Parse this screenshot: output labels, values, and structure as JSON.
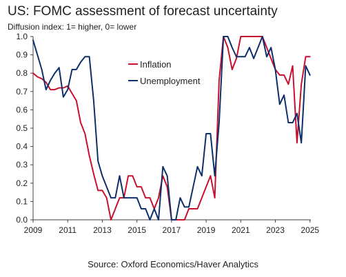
{
  "chart_data": {
    "type": "line",
    "title": "US: FOMC assessment of forecast uncertainty",
    "subtitle": "Diffusion index: 1= higher, 0= lower",
    "source": "Source: Oxford Economics/Haver Analytics",
    "xlabel": "",
    "ylabel": "",
    "xlim": [
      2009,
      2025.05
    ],
    "ylim": [
      0,
      1.0
    ],
    "x_ticks": [
      2009,
      2011,
      2013,
      2015,
      2017,
      2019,
      2021,
      2023,
      2025
    ],
    "y_ticks": [
      0.0,
      0.1,
      0.2,
      0.3,
      0.4,
      0.5,
      0.6,
      0.7,
      0.8,
      0.9,
      1.0
    ],
    "x_tick_labels": [
      "2009",
      "2011",
      "2013",
      "2015",
      "2017",
      "2019",
      "2021",
      "2023",
      "2025"
    ],
    "y_tick_labels": [
      "0.0",
      "0.1",
      "0.2",
      "0.3",
      "0.4",
      "0.5",
      "0.6",
      "0.7",
      "0.8",
      "0.9",
      "1.0"
    ],
    "grid": false,
    "legend_position": "upper-center",
    "colors": {
      "inflation": "#c8102e",
      "unemployment": "#0d2f6b",
      "axis": "#404040"
    },
    "series": [
      {
        "name": "Inflation",
        "color": "#c8102e",
        "x": [
          2009.0,
          2009.25,
          2009.5,
          2009.75,
          2010.0,
          2010.25,
          2010.5,
          2010.75,
          2011.0,
          2011.25,
          2011.5,
          2011.75,
          2012.0,
          2012.25,
          2012.5,
          2012.75,
          2013.0,
          2013.25,
          2013.5,
          2013.75,
          2014.0,
          2014.25,
          2014.5,
          2014.75,
          2015.0,
          2015.25,
          2015.5,
          2015.75,
          2016.0,
          2016.25,
          2016.5,
          2016.75,
          2017.0,
          2017.25,
          2017.5,
          2017.75,
          2018.0,
          2018.25,
          2018.5,
          2018.75,
          2019.0,
          2019.25,
          2019.5,
          2019.75,
          2020.0,
          2020.25,
          2020.5,
          2020.75,
          2021.0,
          2021.25,
          2021.5,
          2021.75,
          2022.0,
          2022.25,
          2022.5,
          2022.75,
          2023.0,
          2023.25,
          2023.5,
          2023.75,
          2024.0,
          2024.25,
          2024.5,
          2024.75,
          2025.0
        ],
        "y": [
          0.8,
          0.78,
          0.77,
          0.75,
          0.71,
          0.71,
          0.72,
          0.72,
          0.73,
          0.69,
          0.65,
          0.53,
          0.47,
          0.35,
          0.25,
          0.16,
          0.16,
          0.12,
          0.0,
          0.06,
          0.12,
          0.12,
          0.24,
          0.24,
          0.18,
          0.18,
          0.12,
          0.12,
          0.06,
          0.12,
          0.24,
          0.18,
          0.0,
          0.0,
          0.0,
          0.0,
          0.06,
          0.06,
          0.06,
          0.12,
          0.18,
          0.24,
          0.12,
          0.76,
          1.0,
          0.94,
          0.82,
          0.88,
          1.0,
          1.0,
          1.0,
          1.0,
          1.0,
          1.0,
          0.94,
          0.88,
          0.82,
          0.79,
          0.79,
          0.74,
          0.84,
          0.42,
          0.74,
          0.89,
          0.89
        ]
      },
      {
        "name": "Unemployment",
        "color": "#0d2f6b",
        "x": [
          2009.0,
          2009.25,
          2009.5,
          2009.75,
          2010.0,
          2010.25,
          2010.5,
          2010.75,
          2011.0,
          2011.25,
          2011.5,
          2011.75,
          2012.0,
          2012.25,
          2012.5,
          2012.75,
          2013.0,
          2013.25,
          2013.5,
          2013.75,
          2014.0,
          2014.25,
          2014.5,
          2014.75,
          2015.0,
          2015.25,
          2015.5,
          2015.75,
          2016.0,
          2016.25,
          2016.5,
          2016.75,
          2017.0,
          2017.25,
          2017.5,
          2017.75,
          2018.0,
          2018.25,
          2018.5,
          2018.75,
          2019.0,
          2019.25,
          2019.5,
          2019.75,
          2020.0,
          2020.25,
          2020.5,
          2020.75,
          2021.0,
          2021.25,
          2021.5,
          2021.75,
          2022.0,
          2022.25,
          2022.5,
          2022.75,
          2023.0,
          2023.25,
          2023.5,
          2023.75,
          2024.0,
          2024.25,
          2024.5,
          2024.75,
          2025.0
        ],
        "y": [
          0.98,
          0.9,
          0.82,
          0.71,
          0.76,
          0.8,
          0.83,
          0.67,
          0.71,
          0.82,
          0.82,
          0.86,
          0.89,
          0.89,
          0.65,
          0.32,
          0.24,
          0.18,
          0.12,
          0.12,
          0.24,
          0.12,
          0.12,
          0.12,
          0.12,
          0.06,
          0.06,
          0.0,
          0.06,
          0.0,
          0.29,
          0.24,
          0.0,
          0.0,
          0.12,
          0.07,
          0.07,
          0.18,
          0.29,
          0.24,
          0.47,
          0.47,
          0.24,
          0.53,
          1.0,
          1.0,
          0.94,
          0.89,
          0.89,
          0.89,
          0.94,
          0.88,
          0.94,
          1.0,
          0.89,
          0.94,
          0.82,
          0.63,
          0.68,
          0.53,
          0.53,
          0.58,
          0.42,
          0.84,
          0.79
        ]
      }
    ]
  }
}
